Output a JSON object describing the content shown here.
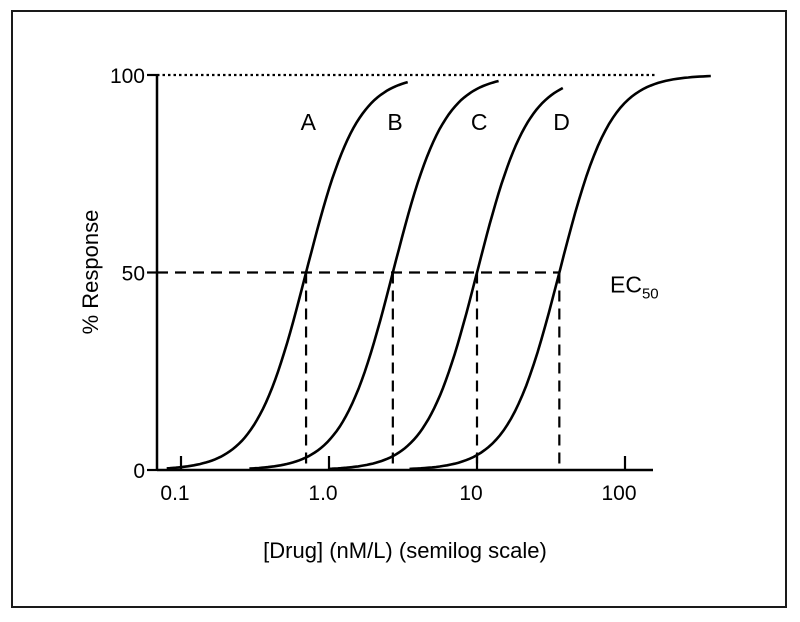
{
  "chart_data": {
    "type": "line",
    "title": "",
    "xlabel": "[Drug] (nM/L) (semilog scale)",
    "ylabel": "% Response",
    "x_scale": "log",
    "xlim": [
      0.08,
      150
    ],
    "ylim": [
      0,
      100
    ],
    "x_ticks": [
      {
        "value": 0.1,
        "label": "0.1"
      },
      {
        "value": 1,
        "label": "1.0"
      },
      {
        "value": 10,
        "label": "10"
      },
      {
        "value": 100,
        "label": "100"
      }
    ],
    "y_ticks": [
      {
        "value": 0,
        "label": "0"
      },
      {
        "value": 50,
        "label": "50"
      },
      {
        "value": 100,
        "label": "100"
      }
    ],
    "grid": false,
    "legend": "none",
    "series": [
      {
        "name": "A",
        "ec50": 0.7,
        "x_start": 0.08,
        "x_end": 3.4
      },
      {
        "name": "B",
        "ec50": 2.7,
        "x_start": 0.29,
        "x_end": 14
      },
      {
        "name": "C",
        "ec50": 10,
        "x_start": 1.0,
        "x_end": 38
      },
      {
        "name": "D",
        "ec50": 36,
        "x_start": 3.5,
        "x_end": 380
      }
    ],
    "reference_lines": {
      "max_response": 100,
      "half_response": 50
    },
    "annotation": {
      "text": "EC",
      "subscript": "50"
    }
  }
}
